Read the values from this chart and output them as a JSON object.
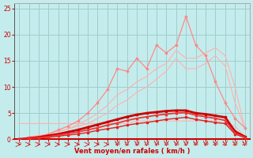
{
  "xlabel": "Vent moyen/en rafales ( km/h )",
  "x": [
    0,
    1,
    2,
    3,
    4,
    5,
    6,
    7,
    8,
    9,
    10,
    11,
    12,
    13,
    14,
    15,
    16,
    17,
    18,
    19,
    20,
    21,
    22,
    23
  ],
  "ylim": [
    0,
    26
  ],
  "xlim": [
    -0.5,
    23.5
  ],
  "yticks": [
    0,
    5,
    10,
    15,
    20,
    25
  ],
  "bg_color": "#c5ecec",
  "grid_color": "#9dcece",
  "line_pale1_y": [
    3.0,
    3.0,
    3.0,
    3.0,
    3.0,
    3.0,
    3.0,
    3.0,
    3.0,
    3.0,
    3.0,
    3.0,
    3.5,
    3.5,
    3.5,
    3.5,
    3.5,
    3.5,
    3.5,
    3.5,
    3.5,
    3.0,
    2.5,
    0.5
  ],
  "line_pale1_color": "#ffb0b0",
  "line_pale1_lw": 0.8,
  "line_pale2_y": [
    0.0,
    0.5,
    0.7,
    1.0,
    1.5,
    2.0,
    2.5,
    3.0,
    4.0,
    5.0,
    6.5,
    7.5,
    9.0,
    10.0,
    11.5,
    13.0,
    15.5,
    13.5,
    13.5,
    14.5,
    16.0,
    14.0,
    7.0,
    2.2
  ],
  "line_pale2_color": "#ffb0b0",
  "line_pale2_lw": 0.8,
  "line_pale3_y": [
    0.0,
    0.3,
    0.6,
    1.0,
    1.5,
    2.0,
    2.8,
    3.8,
    5.0,
    6.5,
    8.5,
    9.5,
    11.0,
    12.0,
    13.5,
    14.5,
    17.0,
    15.5,
    15.5,
    16.5,
    17.5,
    16.0,
    10.0,
    2.2
  ],
  "line_pale3_color": "#ffb0b0",
  "line_pale3_lw": 0.8,
  "line_jagged_y": [
    0.0,
    0.3,
    0.5,
    1.0,
    1.8,
    2.5,
    3.5,
    5.0,
    7.0,
    9.5,
    13.5,
    13.0,
    15.5,
    13.5,
    18.0,
    16.5,
    18.0,
    23.5,
    18.0,
    16.0,
    11.0,
    7.0,
    4.0,
    2.2
  ],
  "line_jagged_color": "#ff8888",
  "line_jagged_lw": 0.9,
  "line_jagged_marker": "D",
  "line_dark1_y": [
    0.0,
    0.1,
    0.2,
    0.4,
    0.6,
    0.8,
    1.0,
    1.3,
    1.7,
    2.0,
    2.3,
    2.7,
    3.0,
    3.2,
    3.5,
    3.8,
    4.0,
    4.2,
    3.8,
    3.5,
    3.2,
    3.0,
    1.0,
    0.3
  ],
  "line_dark1_color": "#dd2222",
  "line_dark1_lw": 1.0,
  "line_dark1_marker": "s",
  "line_dark2_y": [
    0.0,
    0.2,
    0.4,
    0.7,
    1.0,
    1.4,
    1.8,
    2.3,
    2.8,
    3.3,
    3.8,
    4.3,
    4.7,
    5.0,
    5.2,
    5.4,
    5.5,
    5.5,
    5.0,
    4.8,
    4.5,
    4.2,
    1.5,
    0.5
  ],
  "line_dark2_color": "#cc0000",
  "line_dark2_lw": 2.0,
  "line_dark2_marker": "s",
  "line_dark3_y": [
    0.0,
    0.15,
    0.3,
    0.5,
    0.8,
    1.1,
    1.4,
    1.8,
    2.2,
    2.7,
    3.1,
    3.6,
    4.0,
    4.3,
    4.6,
    4.8,
    5.0,
    5.1,
    4.6,
    4.3,
    4.0,
    3.6,
    1.2,
    0.4
  ],
  "line_dark3_color": "#ee3333",
  "line_dark3_lw": 1.3,
  "line_dark3_marker": "^",
  "arrow_color": "#cc2222",
  "hline_color": "#cc0000",
  "hline_lw": 1.0
}
